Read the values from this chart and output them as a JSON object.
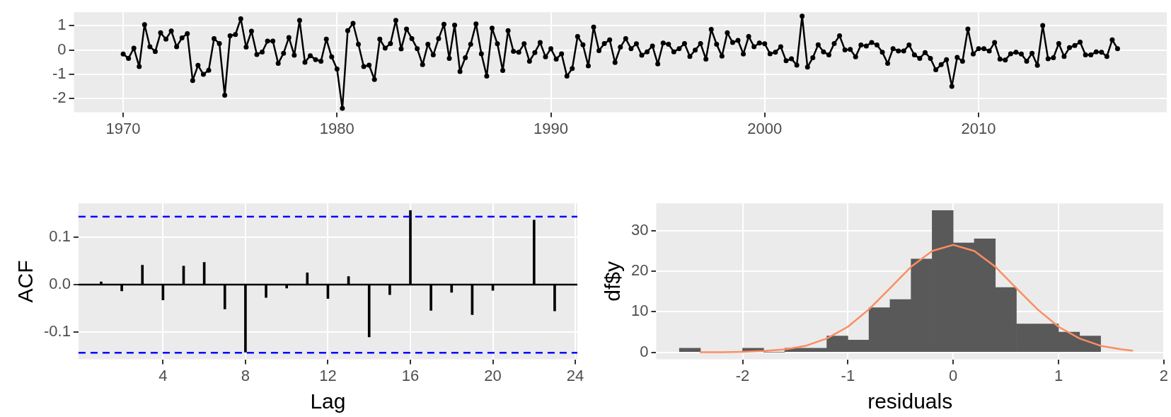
{
  "chart_data": [
    {
      "type": "line",
      "color": "#000000",
      "marker": "circle",
      "grid": true,
      "x": [
        1970,
        1970.25,
        1970.5,
        1970.75,
        1971,
        1971.25,
        1971.5,
        1971.75,
        1972,
        1972.25,
        1972.5,
        1972.75,
        1973,
        1973.25,
        1973.5,
        1973.75,
        1974,
        1974.25,
        1974.5,
        1974.75,
        1975,
        1975.25,
        1975.5,
        1975.75,
        1976,
        1976.25,
        1976.5,
        1976.75,
        1977,
        1977.25,
        1977.5,
        1977.75,
        1978,
        1978.25,
        1978.5,
        1978.75,
        1979,
        1979.25,
        1979.5,
        1979.75,
        1980,
        1980.25,
        1980.5,
        1980.75,
        1981,
        1981.25,
        1981.5,
        1981.75,
        1982,
        1982.25,
        1982.5,
        1982.75,
        1983,
        1983.25,
        1983.5,
        1983.75,
        1984,
        1984.25,
        1984.5,
        1984.75,
        1985,
        1985.25,
        1985.5,
        1985.75,
        1986,
        1986.25,
        1986.5,
        1986.75,
        1987,
        1987.25,
        1987.5,
        1987.75,
        1988,
        1988.25,
        1988.5,
        1988.75,
        1989,
        1989.25,
        1989.5,
        1989.75,
        1990,
        1990.25,
        1990.5,
        1990.75,
        1991,
        1991.25,
        1991.5,
        1991.75,
        1992,
        1992.25,
        1992.5,
        1992.75,
        1993,
        1993.25,
        1993.5,
        1993.75,
        1994,
        1994.25,
        1994.5,
        1994.75,
        1995,
        1995.25,
        1995.5,
        1995.75,
        1996,
        1996.25,
        1996.5,
        1996.75,
        1997,
        1997.25,
        1997.5,
        1997.75,
        1998,
        1998.25,
        1998.5,
        1998.75,
        1999,
        1999.25,
        1999.5,
        1999.75,
        2000,
        2000.25,
        2000.5,
        2000.75,
        2001,
        2001.25,
        2001.5,
        2001.75,
        2002,
        2002.25,
        2002.5,
        2002.75,
        2003,
        2003.25,
        2003.5,
        2003.75,
        2004,
        2004.25,
        2004.5,
        2004.75,
        2005,
        2005.25,
        2005.5,
        2005.75,
        2006,
        2006.25,
        2006.5,
        2006.75,
        2007,
        2007.25,
        2007.5,
        2007.75,
        2008,
        2008.25,
        2008.5,
        2008.75,
        2009,
        2009.25,
        2009.5,
        2009.75,
        2010,
        2010.25,
        2010.5,
        2010.75,
        2011,
        2011.25,
        2011.5,
        2011.75,
        2012,
        2012.25,
        2012.5,
        2012.75,
        2013,
        2013.25,
        2013.5,
        2013.75,
        2014,
        2014.25,
        2014.5,
        2014.75,
        2015,
        2015.25,
        2015.5,
        2015.75,
        2016,
        2016.25,
        2016.5
      ],
      "values": [
        -0.16,
        -0.34,
        0.08,
        -0.68,
        1.05,
        0.14,
        -0.06,
        0.71,
        0.45,
        0.79,
        0.14,
        0.5,
        0.68,
        -1.25,
        -0.63,
        -1.0,
        -0.83,
        0.47,
        0.27,
        -1.86,
        0.59,
        0.64,
        1.29,
        0.12,
        0.78,
        -0.18,
        -0.08,
        0.37,
        0.37,
        -0.55,
        -0.13,
        0.52,
        -0.21,
        1.22,
        -0.5,
        -0.23,
        -0.39,
        -0.46,
        0.45,
        -0.28,
        -0.78,
        -2.4,
        0.8,
        1.1,
        0.24,
        -0.68,
        -0.62,
        -1.21,
        0.45,
        0.08,
        0.27,
        1.22,
        0.05,
        0.87,
        0.47,
        0.06,
        -0.6,
        0.24,
        -0.2,
        0.47,
        1.06,
        -0.34,
        1.03,
        -0.88,
        -0.31,
        0.24,
        1.08,
        -0.15,
        -1.07,
        0.9,
        0.26,
        -0.84,
        0.8,
        -0.05,
        -0.09,
        0.26,
        -0.46,
        -0.1,
        0.31,
        -0.28,
        0.06,
        -0.37,
        -0.15,
        -1.07,
        -0.76,
        0.56,
        0.22,
        -0.65,
        0.95,
        -0.02,
        0.27,
        0.42,
        -0.51,
        0.12,
        0.47,
        0.06,
        0.26,
        -0.21,
        -0.07,
        0.17,
        -0.57,
        0.29,
        0.24,
        -0.07,
        0.06,
        0.27,
        -0.26,
        0.0,
        0.27,
        -0.37,
        0.85,
        0.24,
        -0.25,
        0.71,
        0.31,
        0.4,
        -0.16,
        0.56,
        0.14,
        0.29,
        0.26,
        -0.15,
        -0.09,
        0.14,
        -0.44,
        -0.36,
        -0.62,
        1.4,
        -0.7,
        -0.31,
        0.22,
        -0.07,
        -0.2,
        0.27,
        0.59,
        0.01,
        0.03,
        -0.28,
        0.21,
        0.17,
        0.31,
        0.21,
        -0.09,
        -0.55,
        0.06,
        -0.04,
        -0.04,
        0.21,
        -0.2,
        -0.34,
        -0.1,
        -0.34,
        -0.81,
        -0.6,
        -0.39,
        -1.49,
        -0.3,
        -0.46,
        0.87,
        -0.16,
        0.06,
        0.06,
        -0.04,
        0.31,
        -0.37,
        -0.41,
        -0.15,
        -0.09,
        -0.16,
        -0.46,
        -0.13,
        -0.63,
        1.01,
        -0.36,
        -0.31,
        0.27,
        -0.26,
        0.1,
        0.19,
        0.33,
        -0.2,
        -0.2,
        -0.07,
        -0.09,
        -0.26,
        0.42,
        0.06
      ],
      "xlim": [
        1967.7,
        2018.8
      ],
      "xticks": [
        1970,
        1980,
        1990,
        2000,
        2010
      ],
      "ylim": [
        -2.56,
        1.56
      ],
      "yticks": [
        -2,
        -1,
        0,
        1
      ]
    },
    {
      "type": "bar",
      "color": "#000000",
      "grid": true,
      "xlabel": "Lag",
      "ylabel": "ACF",
      "x": [
        1,
        2,
        3,
        4,
        5,
        6,
        7,
        8,
        9,
        10,
        11,
        12,
        13,
        14,
        15,
        16,
        17,
        18,
        19,
        20,
        21,
        22,
        23
      ],
      "values": [
        0.006,
        -0.013,
        0.041,
        -0.032,
        0.039,
        0.047,
        -0.051,
        -0.142,
        -0.027,
        -0.007,
        0.025,
        -0.029,
        0.017,
        -0.11,
        -0.021,
        0.156,
        -0.054,
        -0.016,
        -0.063,
        -0.012,
        0.0,
        0.136,
        -0.055
      ],
      "xlim": [
        -0.1,
        24.1
      ],
      "xticks": [
        4,
        8,
        12,
        16,
        20,
        24
      ],
      "ylim": [
        -0.157,
        0.171
      ],
      "yticks": [
        -0.1,
        {
          "value": 0,
          "label": "0.0"
        },
        0.1
      ],
      "ref_lines": [
        {
          "axis": "y",
          "value": 0.143,
          "color": "#0000ff",
          "line_style": "dashed"
        },
        {
          "axis": "y",
          "value": -0.143,
          "color": "#0000ff",
          "line_style": "dashed"
        },
        {
          "axis": "y",
          "value": 0,
          "color": "#000000",
          "line_style": "solid"
        }
      ]
    },
    {
      "type": "histogram",
      "color": "#595959",
      "grid": true,
      "xlabel": "residuals",
      "ylabel": "df$y",
      "bins": [
        -2.6,
        -2.4,
        -2.2,
        -2.0,
        -1.8,
        -1.6,
        -1.4,
        -1.2,
        -1.0,
        -0.8,
        -0.6,
        -0.4,
        -0.2,
        0,
        0.2,
        0.4,
        0.6,
        0.8,
        1.0,
        1.2,
        1.4
      ],
      "values": [
        1,
        0,
        0,
        1,
        0,
        1,
        1,
        4,
        3,
        11,
        13,
        23,
        35,
        27,
        28,
        16,
        7,
        7,
        5,
        4
      ],
      "series": [
        {
          "type": "line",
          "color": "#fc8d62",
          "marker": "none",
          "x": [
            -2.4,
            -2.2,
            -2.0,
            -1.8,
            -1.6,
            -1.4,
            -1.2,
            -1.0,
            -0.8,
            -0.6,
            -0.4,
            -0.2,
            0,
            0.2,
            0.4,
            0.6,
            0.8,
            1.0,
            1.2,
            1.4,
            1.6,
            1.7
          ],
          "values": [
            0.0,
            0.0,
            0.1,
            0.3,
            0.7,
            1.6,
            3.4,
            6.3,
            10.6,
            15.8,
            21.1,
            25.0,
            26.5,
            25.0,
            21.1,
            15.8,
            10.6,
            6.3,
            3.4,
            1.6,
            0.7,
            0.4
          ]
        }
      ],
      "xlim": [
        -2.82,
        2.0
      ],
      "xticks": [
        -2,
        -1,
        0,
        1,
        2
      ],
      "ylim": [
        -1.75,
        36.75
      ],
      "yticks": [
        0,
        10,
        20,
        30
      ]
    }
  ]
}
